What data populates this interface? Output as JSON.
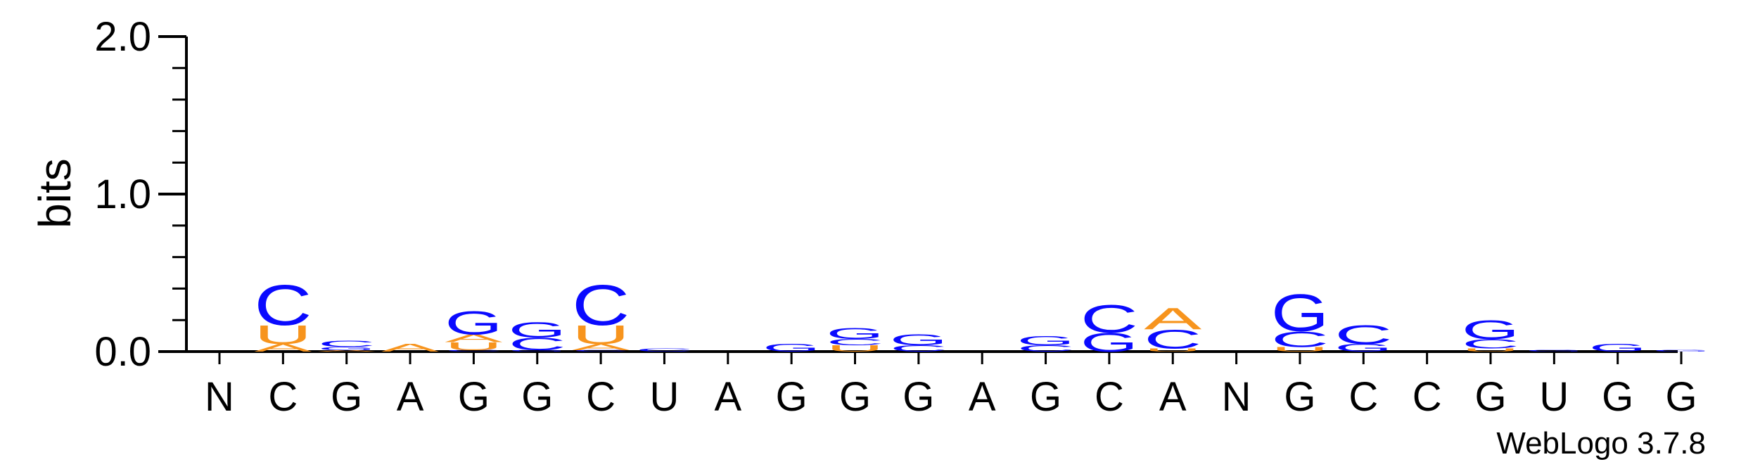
{
  "chart_data": {
    "type": "sequence-logo",
    "ylabel": "bits",
    "xlabel": "",
    "ylim": [
      0,
      2.0
    ],
    "yticks": [
      {
        "value": 0.0,
        "label": "0.0"
      },
      {
        "value": 1.0,
        "label": "1.0"
      },
      {
        "value": 2.0,
        "label": "2.0"
      }
    ],
    "positions": [
      "N",
      "C",
      "G",
      "A",
      "G",
      "G",
      "C",
      "U",
      "A",
      "G",
      "G",
      "G",
      "A",
      "G",
      "C",
      "A",
      "N",
      "G",
      "C",
      "C",
      "G",
      "U",
      "G",
      "G"
    ],
    "letter_colors": {
      "A": "#f7941d",
      "U": "#f7941d",
      "C": "#0a0aff",
      "G": "#0a0aff"
    },
    "stacks": [
      [],
      [
        {
          "l": "A",
          "h": 0.05
        },
        {
          "l": "U",
          "h": 0.12
        },
        {
          "l": "C",
          "h": 0.26
        }
      ],
      [
        {
          "l": "A",
          "h": 0.01
        },
        {
          "l": "G",
          "h": 0.02
        },
        {
          "l": "C",
          "h": 0.04
        }
      ],
      [
        {
          "l": "A",
          "h": 0.05
        }
      ],
      [
        {
          "l": "C",
          "h": 0.01
        },
        {
          "l": "U",
          "h": 0.05
        },
        {
          "l": "A",
          "h": 0.05
        },
        {
          "l": "G",
          "h": 0.15
        }
      ],
      [
        {
          "l": "G",
          "h": 0.01
        },
        {
          "l": "C",
          "h": 0.08
        },
        {
          "l": "G",
          "h": 0.1
        }
      ],
      [
        {
          "l": "C",
          "h": 0.01
        },
        {
          "l": "A",
          "h": 0.04
        },
        {
          "l": "U",
          "h": 0.12
        },
        {
          "l": "C",
          "h": 0.26
        }
      ],
      [
        {
          "l": "C",
          "h": 0.02
        }
      ],
      [],
      [
        {
          "l": "G",
          "h": 0.05
        }
      ],
      [
        {
          "l": "U",
          "h": 0.04
        },
        {
          "l": "C",
          "h": 0.04
        },
        {
          "l": "G",
          "h": 0.07
        }
      ],
      [
        {
          "l": "C",
          "h": 0.04
        },
        {
          "l": "G",
          "h": 0.07
        }
      ],
      [],
      [
        {
          "l": "C",
          "h": 0.04
        },
        {
          "l": "G",
          "h": 0.06
        }
      ],
      [
        {
          "l": "G",
          "h": 0.12
        },
        {
          "l": "C",
          "h": 0.18
        }
      ],
      [
        {
          "l": "U",
          "h": 0.02
        },
        {
          "l": "C",
          "h": 0.12
        },
        {
          "l": "A",
          "h": 0.14
        }
      ],
      [],
      [
        {
          "l": "U",
          "h": 0.03
        },
        {
          "l": "C",
          "h": 0.1
        },
        {
          "l": "G",
          "h": 0.24
        }
      ],
      [
        {
          "l": "G",
          "h": 0.05
        },
        {
          "l": "C",
          "h": 0.12
        }
      ],
      [],
      [
        {
          "l": "U",
          "h": 0.02
        },
        {
          "l": "C",
          "h": 0.06
        },
        {
          "l": "G",
          "h": 0.12
        }
      ],
      [
        {
          "l": "G",
          "h": 0.01
        }
      ],
      [
        {
          "l": "G",
          "h": 0.05
        }
      ],
      [
        {
          "l": "G",
          "h": 0.01
        }
      ]
    ],
    "credit": "WebLogo 3.7.8"
  }
}
